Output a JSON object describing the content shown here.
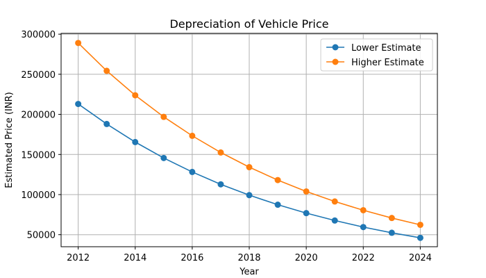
{
  "chart_data": {
    "type": "line",
    "title": "Depreciation of Vehicle Price",
    "xlabel": "Year",
    "ylabel": "Estimated Price (INR)",
    "x": [
      2012,
      2013,
      2014,
      2015,
      2016,
      2017,
      2018,
      2019,
      2020,
      2021,
      2022,
      2023,
      2024
    ],
    "xticks": [
      2012,
      2014,
      2016,
      2018,
      2020,
      2022,
      2024
    ],
    "yticks": [
      50000,
      100000,
      150000,
      200000,
      250000,
      300000
    ],
    "xlim": [
      2011.4,
      2024.6
    ],
    "ylim": [
      35000,
      301000
    ],
    "grid": true,
    "legend_position": "top-right",
    "series": [
      {
        "name": "Lower Estimate",
        "color": "#1f77b4",
        "values": [
          213000,
          188000,
          165500,
          145600,
          128200,
          112800,
          99300,
          87400,
          76900,
          67700,
          59500,
          52400,
          46100
        ]
      },
      {
        "name": "Higher Estimate",
        "color": "#ff7f0e",
        "values": [
          289000,
          254300,
          223800,
          196900,
          173300,
          152500,
          134200,
          118100,
          103900,
          91400,
          80500,
          70800,
          62300
        ]
      }
    ]
  }
}
